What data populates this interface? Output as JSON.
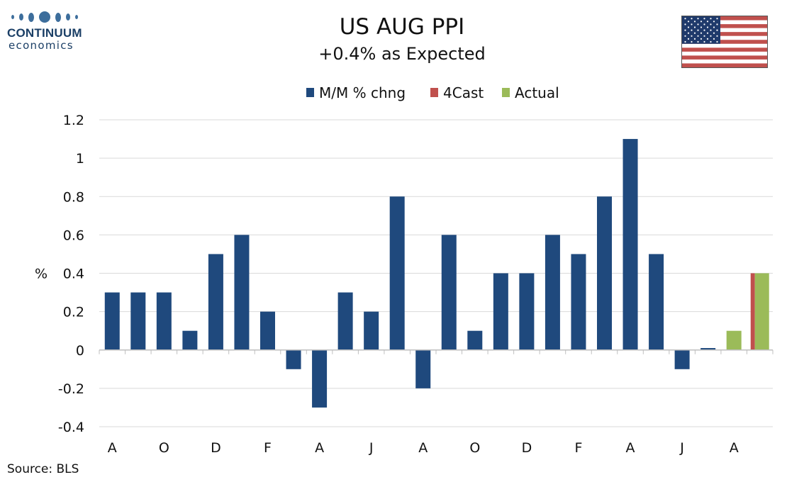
{
  "logo": {
    "brand": "CONTINUUM",
    "sub": "economics"
  },
  "flag_icon": "us-flag-icon",
  "source": "Source: BLS",
  "colors": {
    "mm": "#1f497d",
    "forecast": "#c0504d",
    "actual": "#9bbb59",
    "grid": "#d9d9d9",
    "axis": "#bfbfbf"
  },
  "chart_data": {
    "type": "bar",
    "title": "US AUG PPI",
    "subtitle": "+0.4% as Expected",
    "ylabel": "%",
    "ylim": [
      -0.4,
      1.2
    ],
    "yticks": [
      -0.4,
      -0.2,
      0,
      0.2,
      0.4,
      0.6,
      0.8,
      1,
      1.2
    ],
    "ytick_labels": [
      "-0.4",
      "-0.2",
      "0",
      "0.2",
      "0.4",
      "0.6",
      "0.8",
      "1",
      "1.2"
    ],
    "x_tick_labels": [
      "A",
      "O",
      "D",
      "F",
      "A",
      "J",
      "A",
      "O",
      "D",
      "F",
      "A",
      "J",
      "A"
    ],
    "legend_position": "top-center",
    "grid": true,
    "series": [
      {
        "name": "M/M % chng",
        "values": [
          0.3,
          0.3,
          0.3,
          0.1,
          0.5,
          0.6,
          0.2,
          -0.1,
          -0.3,
          0.3,
          0.2,
          0.8,
          -0.2,
          0.6,
          0.1,
          0.4,
          0.4,
          0.6,
          0.5,
          0.8,
          1.1,
          0.5,
          -0.1,
          0.01,
          null,
          null
        ]
      },
      {
        "name": "4Cast",
        "values": [
          null,
          null,
          null,
          null,
          null,
          null,
          null,
          null,
          null,
          null,
          null,
          null,
          null,
          null,
          null,
          null,
          null,
          null,
          null,
          null,
          null,
          null,
          null,
          null,
          null,
          0.4
        ]
      },
      {
        "name": "Actual",
        "values": [
          null,
          null,
          null,
          null,
          null,
          null,
          null,
          null,
          null,
          null,
          null,
          null,
          null,
          null,
          null,
          null,
          null,
          null,
          null,
          null,
          null,
          null,
          null,
          null,
          0.1,
          0.4
        ]
      }
    ]
  }
}
